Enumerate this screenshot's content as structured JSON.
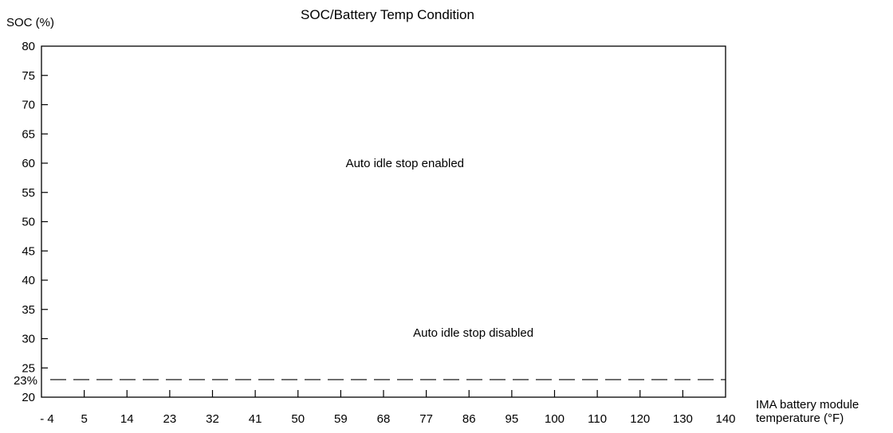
{
  "chart_data": {
    "type": "area",
    "title": "SOC/Battery Temp Condition",
    "ylabel": "SOC (%)",
    "xlabel_lines": [
      "IMA battery module",
      "temperature (°F)"
    ],
    "x_ticks": [
      "- 4",
      "5",
      "14",
      "23",
      "32",
      "41",
      "50",
      "59",
      "68",
      "77",
      "86",
      "95",
      "100",
      "110",
      "120",
      "130",
      "140"
    ],
    "y_ticks": [
      20,
      25,
      30,
      35,
      40,
      45,
      50,
      55,
      60,
      65,
      70,
      75,
      80
    ],
    "ylim": [
      20,
      80
    ],
    "threshold": {
      "value": 23,
      "label": "23%",
      "style": "dashed"
    },
    "regions": [
      {
        "label": "Auto idle stop enabled",
        "soc_at": 60,
        "x_index": 8.5
      },
      {
        "label": "Auto idle stop disabled",
        "soc_at": 31,
        "x_index": 10.1
      }
    ],
    "grid": false
  }
}
